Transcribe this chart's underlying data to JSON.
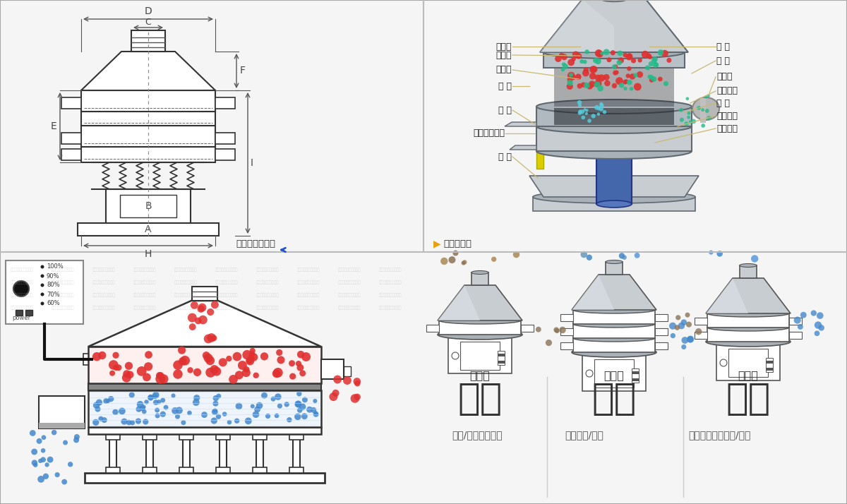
{
  "bg_color": "#ffffff",
  "line_color": "#333333",
  "dim_color": "#555555",
  "tan_color": "#c8b870",
  "red_color": "#e03030",
  "blue_color": "#4488cc",
  "green_color": "#22aa88",
  "cyan_color": "#55ccdd",
  "brown_color": "#886644",
  "panel_text": [
    "100%",
    "90%",
    "80%",
    "70%",
    "60%"
  ],
  "left_labels": [
    "进料口",
    "防尘盖",
    "出料口",
    "束 环",
    "弹 簧",
    "运输固定螺栓",
    "机 座"
  ],
  "right_labels": [
    "筛 网",
    "网 架",
    "加重块",
    "上部重锤",
    "筛 盘",
    "振动电机",
    "下部重锤"
  ],
  "bottom_big": [
    "分级",
    "过滤",
    "除杂"
  ],
  "bottom_small": [
    "颗粒/粉末准确分级",
    "去除异物/结块",
    "去除液体中的颗粒/异物"
  ],
  "type_labels": [
    "单层式",
    "三层式",
    "双层式"
  ],
  "waiguan": "外形尺寸示意图",
  "jiegou": "结构示意图",
  "dim_letters": [
    "A",
    "B",
    "C",
    "D",
    "E",
    "F",
    "H",
    "I"
  ]
}
